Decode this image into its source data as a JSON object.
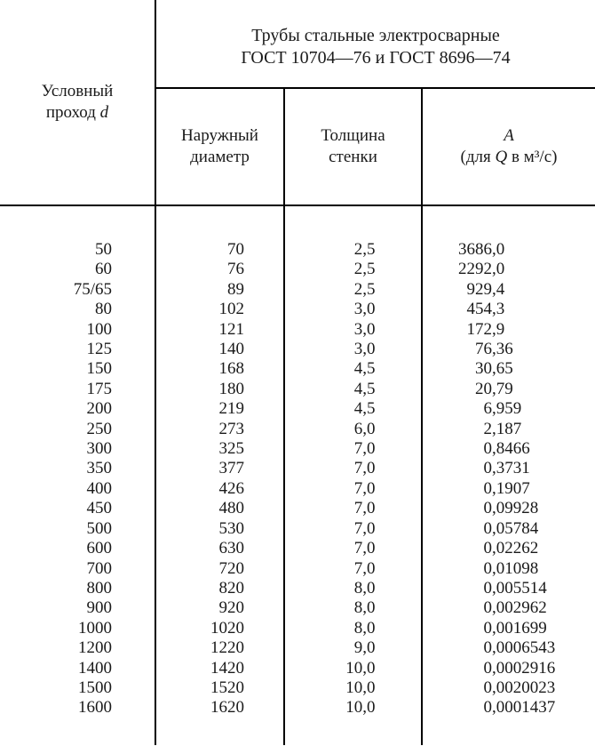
{
  "header": {
    "row_header_l1": "Условный",
    "row_header_l2_pre": "проход ",
    "row_header_l2_it": "d",
    "group_l1": "Трубы стальные электросварные",
    "group_l2": "ГОСТ 10704—76 и ГОСТ 8696—74",
    "sub1_l1": "Наружный",
    "sub1_l2": "диаметр",
    "sub2_l1": "Толщина",
    "sub2_l2": "стенки",
    "sub3_it": "A",
    "sub3_pre": "(для ",
    "sub3_Q": "Q",
    "sub3_post": " в м³/с)"
  },
  "rows": [
    {
      "d": "50",
      "od": "70",
      "t": "2,5",
      "a_int": "3686",
      "a_frac": ",0"
    },
    {
      "d": "60",
      "od": "76",
      "t": "2,5",
      "a_int": "2292",
      "a_frac": ",0"
    },
    {
      "d": "75/65",
      "od": "89",
      "t": "2,5",
      "a_int": "929",
      "a_frac": ",4"
    },
    {
      "d": "80",
      "od": "102",
      "t": "3,0",
      "a_int": "454",
      "a_frac": ",3"
    },
    {
      "d": "100",
      "od": "121",
      "t": "3,0",
      "a_int": "172",
      "a_frac": ",9"
    },
    {
      "d": "125",
      "od": "140",
      "t": "3,0",
      "a_int": "76",
      "a_frac": ",36"
    },
    {
      "d": "150",
      "od": "168",
      "t": "4,5",
      "a_int": "30",
      "a_frac": ",65"
    },
    {
      "d": "175",
      "od": "180",
      "t": "4,5",
      "a_int": "20",
      "a_frac": ",79"
    },
    {
      "d": "200",
      "od": "219",
      "t": "4,5",
      "a_int": "6",
      "a_frac": ",959"
    },
    {
      "d": "250",
      "od": "273",
      "t": "6,0",
      "a_int": "2",
      "a_frac": ",187"
    },
    {
      "d": "300",
      "od": "325",
      "t": "7,0",
      "a_int": "0",
      "a_frac": ",8466"
    },
    {
      "d": "350",
      "od": "377",
      "t": "7,0",
      "a_int": "0",
      "a_frac": ",3731"
    },
    {
      "d": "400",
      "od": "426",
      "t": "7,0",
      "a_int": "0",
      "a_frac": ",1907"
    },
    {
      "d": "450",
      "od": "480",
      "t": "7,0",
      "a_int": "0",
      "a_frac": ",09928"
    },
    {
      "d": "500",
      "od": "530",
      "t": "7,0",
      "a_int": "0",
      "a_frac": ",05784"
    },
    {
      "d": "600",
      "od": "630",
      "t": "7,0",
      "a_int": "0",
      "a_frac": ",02262"
    },
    {
      "d": "700",
      "od": "720",
      "t": "7,0",
      "a_int": "0",
      "a_frac": ",01098"
    },
    {
      "d": "800",
      "od": "820",
      "t": "8,0",
      "a_int": "0",
      "a_frac": ",005514"
    },
    {
      "d": "900",
      "od": "920",
      "t": "8,0",
      "a_int": "0",
      "a_frac": ",002962"
    },
    {
      "d": "1000",
      "od": "1020",
      "t": "8,0",
      "a_int": "0",
      "a_frac": ",001699"
    },
    {
      "d": "1200",
      "od": "1220",
      "t": "9,0",
      "a_int": "0",
      "a_frac": ",0006543"
    },
    {
      "d": "1400",
      "od": "1420",
      "t": "10,0",
      "a_int": "0",
      "a_frac": ",0002916"
    },
    {
      "d": "1500",
      "od": "1520",
      "t": "10,0",
      "a_int": "0",
      "a_frac": ",0020023"
    },
    {
      "d": "1600",
      "od": "1620",
      "t": "10,0",
      "a_int": "0",
      "a_frac": ",0001437"
    }
  ]
}
